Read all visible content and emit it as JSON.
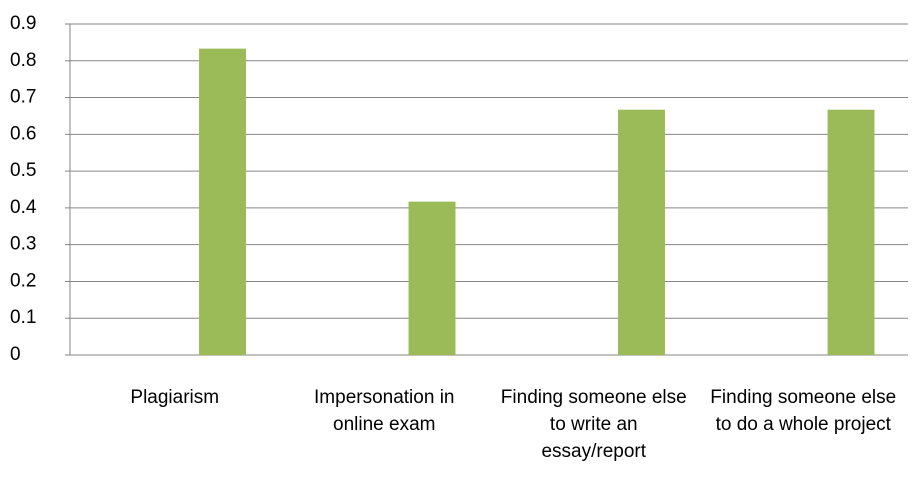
{
  "chart_data": {
    "type": "bar",
    "categories": [
      "Plagiarism",
      "Impersonation in online exam",
      "Finding someone else to write an essay/report",
      "Finding someone else to do a whole project"
    ],
    "values": [
      0.833,
      0.417,
      0.667,
      0.667
    ],
    "color": "#9bbb59",
    "ylim": [
      0,
      0.9
    ],
    "yticks": [
      0,
      0.1,
      0.2,
      0.3,
      0.4,
      0.5,
      0.6,
      0.7,
      0.8,
      0.9
    ],
    "grid": true
  }
}
